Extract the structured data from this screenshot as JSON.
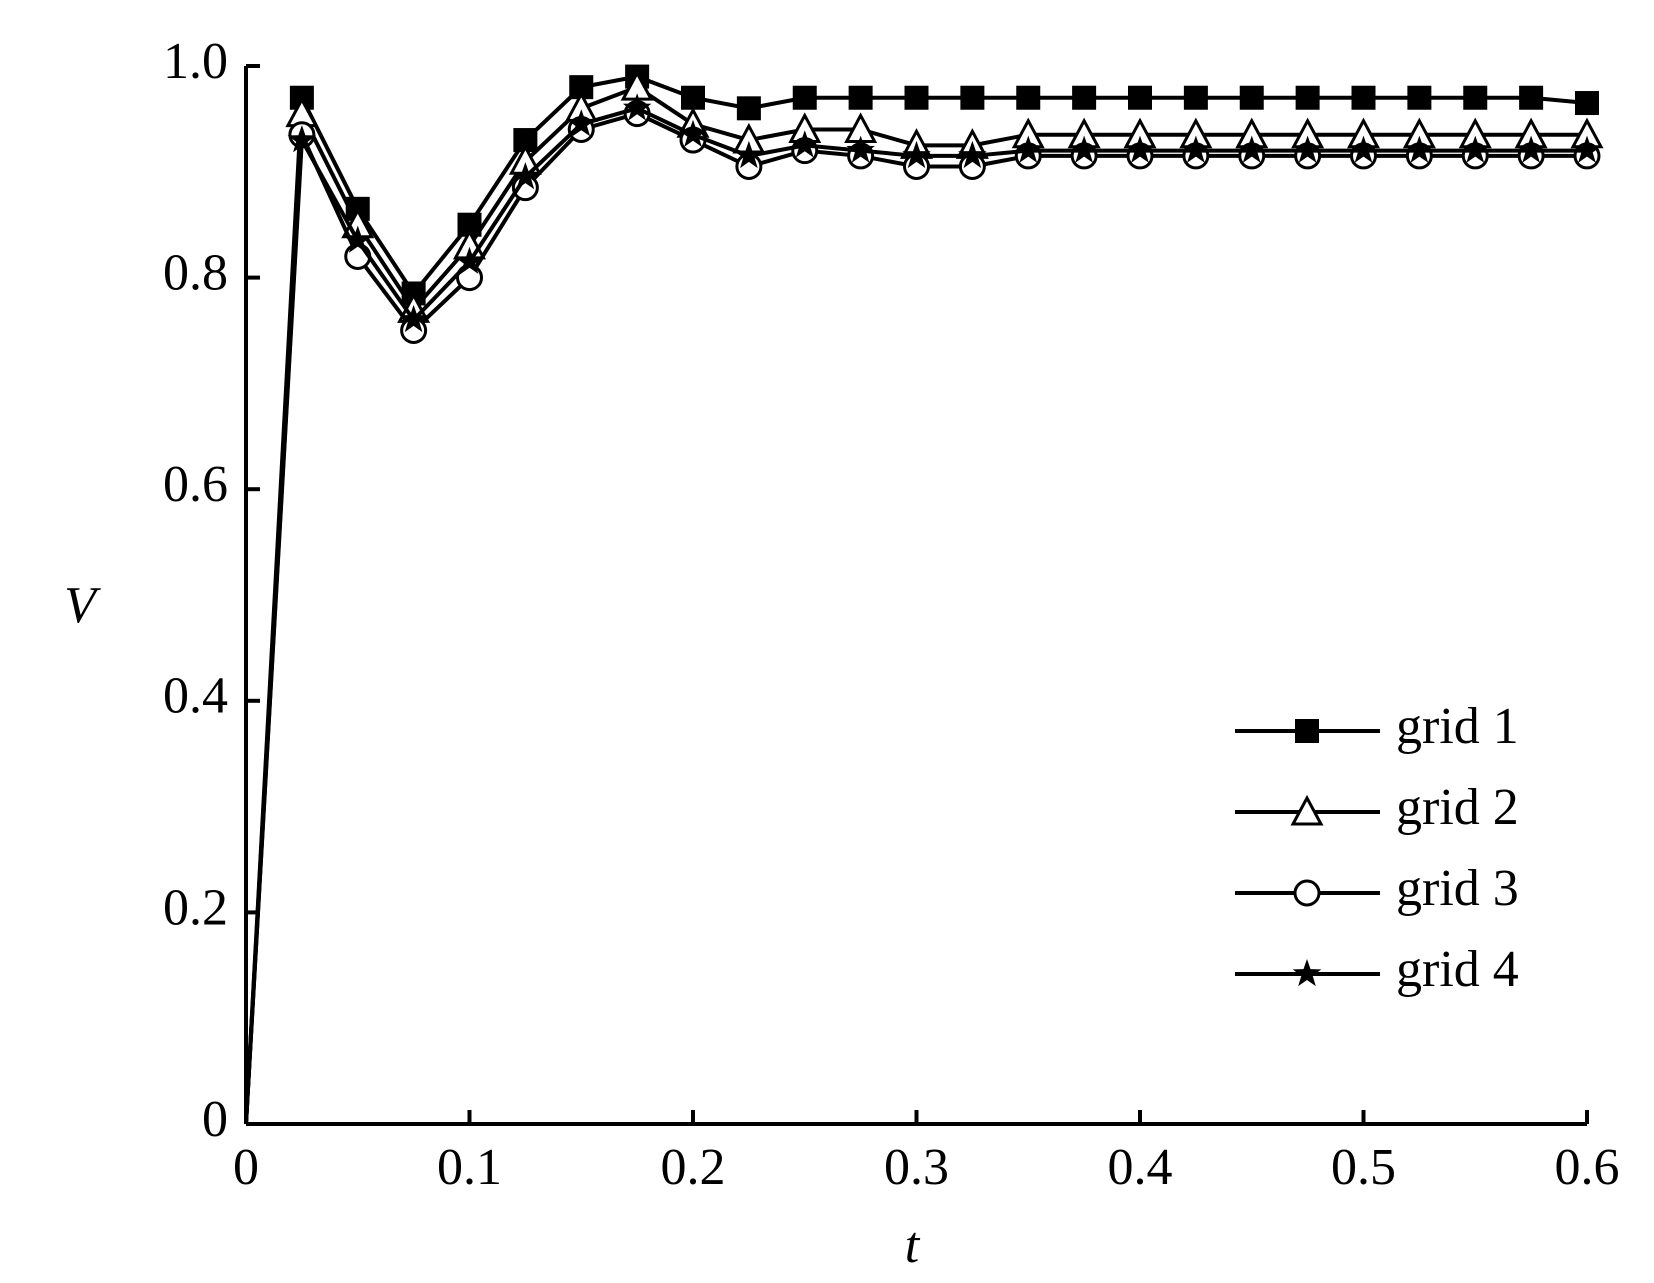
{
  "chart_data": {
    "type": "line",
    "xlabel": "t",
    "ylabel": "V",
    "x": [
      0,
      0.025,
      0.05,
      0.075,
      0.1,
      0.125,
      0.15,
      0.175,
      0.2,
      0.225,
      0.25,
      0.275,
      0.3,
      0.325,
      0.35,
      0.375,
      0.4,
      0.425,
      0.45,
      0.475,
      0.5,
      0.525,
      0.55,
      0.575,
      0.6
    ],
    "series": [
      {
        "name": "grid 1",
        "color": "#000000",
        "marker": "square",
        "values": [
          0,
          0.97,
          0.865,
          0.785,
          0.85,
          0.93,
          0.98,
          0.99,
          0.97,
          0.96,
          0.97,
          0.97,
          0.97,
          0.97,
          0.97,
          0.97,
          0.97,
          0.97,
          0.97,
          0.97,
          0.97,
          0.97,
          0.97,
          0.97,
          0.965
        ]
      },
      {
        "name": "grid 2",
        "color": "#000000",
        "marker": "triangle",
        "values": [
          0,
          0.955,
          0.85,
          0.77,
          0.83,
          0.91,
          0.96,
          0.98,
          0.945,
          0.93,
          0.94,
          0.94,
          0.925,
          0.925,
          0.935,
          0.935,
          0.935,
          0.935,
          0.935,
          0.935,
          0.935,
          0.935,
          0.935,
          0.935,
          0.935
        ]
      },
      {
        "name": "grid 3",
        "color": "#000000",
        "marker": "circle",
        "values": [
          0,
          0.935,
          0.82,
          0.75,
          0.8,
          0.885,
          0.94,
          0.955,
          0.93,
          0.905,
          0.92,
          0.915,
          0.905,
          0.905,
          0.915,
          0.915,
          0.915,
          0.915,
          0.915,
          0.915,
          0.915,
          0.915,
          0.915,
          0.915,
          0.915
        ]
      },
      {
        "name": "grid 4",
        "color": "#000000",
        "marker": "star",
        "values": [
          0,
          0.93,
          0.835,
          0.76,
          0.815,
          0.895,
          0.945,
          0.96,
          0.935,
          0.915,
          0.925,
          0.92,
          0.915,
          0.915,
          0.92,
          0.92,
          0.92,
          0.92,
          0.92,
          0.92,
          0.92,
          0.92,
          0.92,
          0.92,
          0.92
        ]
      }
    ],
    "xlim": [
      0,
      0.6
    ],
    "xticks": [
      0,
      0.1,
      0.2,
      0.3,
      0.4,
      0.5,
      0.6
    ],
    "ylim": [
      0,
      1
    ],
    "yticks": [
      0,
      0.2,
      0.4,
      0.6,
      0.8,
      {
        "value": 1,
        "label": "1.0"
      }
    ],
    "legend": "lower-right",
    "grid": false
  }
}
